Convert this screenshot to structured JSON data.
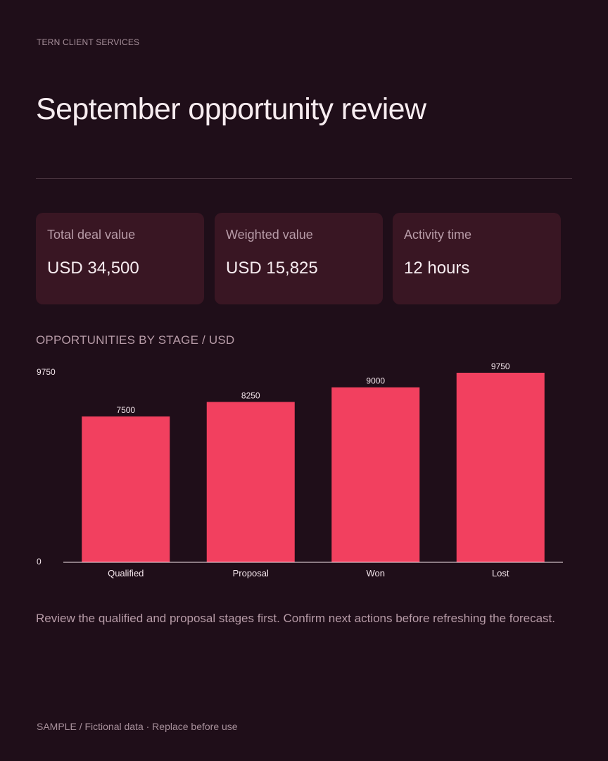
{
  "header": {
    "brand": "TERN CLIENT SERVICES",
    "title": "September opportunity review"
  },
  "metrics": [
    {
      "label": "Total deal value",
      "value": "USD 34,500"
    },
    {
      "label": "Weighted value",
      "value": "USD 15,825"
    },
    {
      "label": "Activity time",
      "value": "12 hours"
    }
  ],
  "chart_data": {
    "type": "bar",
    "title": "OPPORTUNITIES BY STAGE / USD",
    "categories": [
      "Qualified",
      "Proposal",
      "Won",
      "Lost"
    ],
    "values": [
      7500,
      8250,
      9000,
      9750
    ],
    "ylim": [
      0,
      9750
    ],
    "yticks": [
      0,
      9750
    ],
    "xlabel": "",
    "ylabel": "",
    "grid": false,
    "bar_color": "#f2405f"
  },
  "note": "Review the qualified and proposal stages first. Confirm next actions before refreshing the forecast.",
  "footer": "SAMPLE / Fictional data · Replace before use",
  "colors": {
    "background": "#1f0e19",
    "card": "#391623",
    "accent": "#f2405f"
  }
}
